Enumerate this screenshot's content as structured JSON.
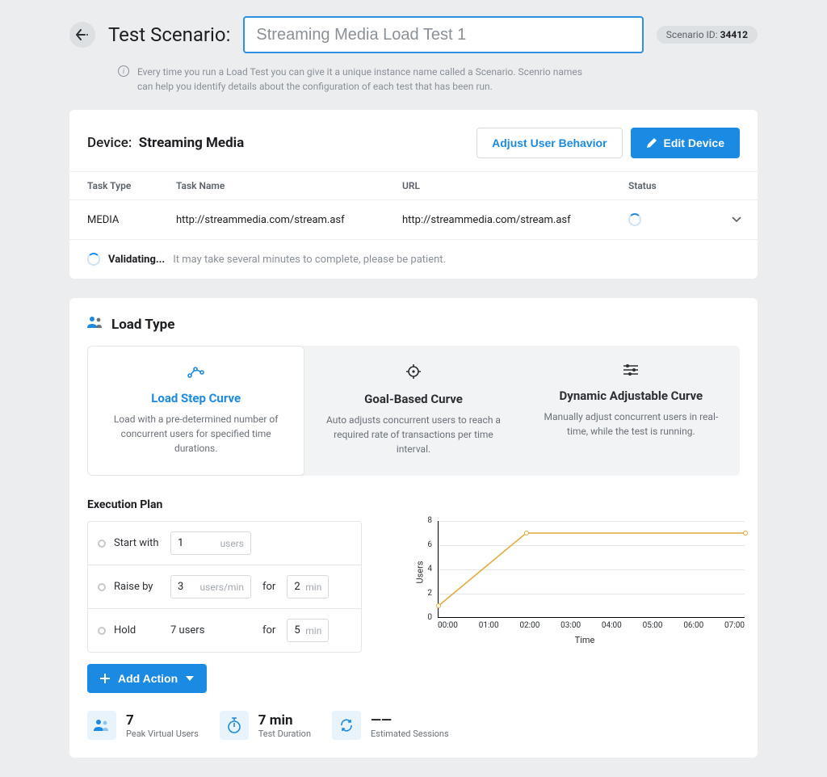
{
  "colors": {
    "background": "#ebedef",
    "card_bg": "#ffffff",
    "primary": "#1a8ae3",
    "text": "#1c1e21",
    "muted": "#8a9098",
    "border": "#e3e6e9",
    "chart_line": "#e3a938",
    "curve_inactive_bg": "#f1f3f5",
    "stat_icon_bg": "#e9f3fc"
  },
  "header": {
    "title_label": "Test Scenario:",
    "scenario_name": "Streaming Media Load Test 1",
    "scenario_id_label": "Scenario ID:",
    "scenario_id": "34412",
    "info_text": "Every time you run a Load Test you can give it a unique instance name called a Scenario. Scenrio names can help you identify details about the configuration of each test that has been run."
  },
  "device": {
    "label": "Device:",
    "name": "Streaming Media",
    "adjust_button": "Adjust User Behavior",
    "edit_button": "Edit Device",
    "columns": {
      "task_type": "Task Type",
      "task_name": "Task Name",
      "url": "URL",
      "status": "Status"
    },
    "rows": [
      {
        "task_type": "MEDIA",
        "task_name": "http://streammedia.com/stream.asf",
        "url": "http://streammedia.com/stream.asf"
      }
    ],
    "validating_label": "Validating...",
    "validating_msg": "It may take several minutes to complete, please be patient."
  },
  "load_type": {
    "title": "Load Type",
    "curves": [
      {
        "title": "Load Step Curve",
        "desc": "Load with a pre-determined number of concurrent users for specified time durations.",
        "active": true
      },
      {
        "title": "Goal-Based Curve",
        "desc": "Auto adjusts concurrent users to reach a required rate of transactions per time interval.",
        "active": false
      },
      {
        "title": "Dynamic Adjustable Curve",
        "desc": "Manually adjust concurrent users in real-time, while the test is running.",
        "active": false
      }
    ]
  },
  "execution": {
    "title": "Execution Plan",
    "rows": {
      "start": {
        "label": "Start with",
        "value": "1",
        "unit": "users"
      },
      "raise": {
        "label": "Raise by",
        "value": "3",
        "unit": "users/min",
        "for_label": "for",
        "duration": "2",
        "duration_unit": "min"
      },
      "hold": {
        "label": "Hold",
        "static": "7 users",
        "for_label": "for",
        "duration": "5",
        "duration_unit": "min"
      }
    },
    "add_action": "Add Action"
  },
  "chart": {
    "type": "line",
    "ylabel": "Users",
    "xlabel": "Time",
    "ylim": [
      0,
      8
    ],
    "yticks": [
      0,
      2,
      4,
      6,
      8
    ],
    "xticks": [
      "00:00",
      "01:00",
      "02:00",
      "03:00",
      "04:00",
      "05:00",
      "06:00",
      "07:00"
    ],
    "points": [
      {
        "x": 0,
        "y": 1
      },
      {
        "x": 2,
        "y": 7
      },
      {
        "x": 7,
        "y": 7
      }
    ],
    "line_color": "#e3a938",
    "line_width": 1.5,
    "grid_color": "#e3e6e9",
    "axis_color": "#000000",
    "marker_outline": "#e3a938",
    "marker_fill": "#ffffff",
    "marker_size": 6,
    "label_fontsize": 11,
    "tick_fontsize": 10
  },
  "stats": [
    {
      "value": "7",
      "label": "Peak Virtual Users",
      "icon": "users"
    },
    {
      "value": "7 min",
      "label": "Test Duration",
      "icon": "stopwatch"
    },
    {
      "value": "——",
      "label": "Estimated Sessions",
      "icon": "refresh"
    }
  ]
}
